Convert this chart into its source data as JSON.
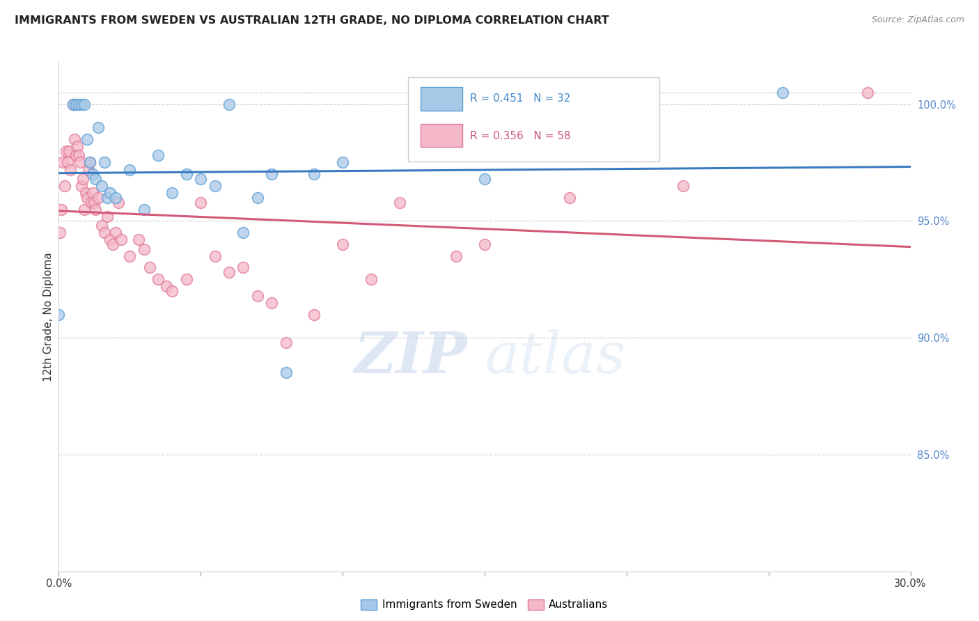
{
  "title": "IMMIGRANTS FROM SWEDEN VS AUSTRALIAN 12TH GRADE, NO DIPLOMA CORRELATION CHART",
  "source": "Source: ZipAtlas.com",
  "ylabel": "12th Grade, No Diploma",
  "xmin": 0.0,
  "xmax": 30.0,
  "ymin": 80.0,
  "ymax": 101.8,
  "yticks": [
    85.0,
    90.0,
    95.0,
    100.0
  ],
  "ytick_labels": [
    "85.0%",
    "90.0%",
    "95.0%",
    "100.0%"
  ],
  "legend_r1": "R = 0.451",
  "legend_n1": "N = 32",
  "legend_r2": "R = 0.356",
  "legend_n2": "N = 58",
  "legend_label1": "Immigrants from Sweden",
  "legend_label2": "Australians",
  "blue_fill": "#a8c8e8",
  "blue_edge": "#5a9fd4",
  "blue_line": "#3a7abf",
  "pink_fill": "#f4b8c8",
  "pink_edge": "#e07898",
  "pink_line": "#d45878",
  "watermark_zip": "ZIP",
  "watermark_atlas": "atlas",
  "blue_points_x": [
    0.0,
    0.5,
    0.6,
    0.7,
    0.8,
    0.9,
    1.0,
    1.1,
    1.2,
    1.3,
    1.4,
    1.5,
    1.6,
    1.7,
    1.8,
    2.0,
    2.5,
    3.0,
    3.5,
    4.0,
    4.5,
    5.0,
    5.5,
    6.0,
    6.5,
    7.0,
    7.5,
    8.0,
    9.0,
    10.0,
    15.0,
    25.5
  ],
  "blue_points_y": [
    91.0,
    100.0,
    100.0,
    100.0,
    100.0,
    100.0,
    98.5,
    97.5,
    97.0,
    96.8,
    99.0,
    96.5,
    97.5,
    96.0,
    96.2,
    96.0,
    97.2,
    95.5,
    97.8,
    96.2,
    97.0,
    96.8,
    96.5,
    100.0,
    94.5,
    96.0,
    97.0,
    88.5,
    97.0,
    97.5,
    96.8,
    100.5
  ],
  "pink_points_x": [
    0.05,
    0.1,
    0.15,
    0.2,
    0.25,
    0.3,
    0.35,
    0.4,
    0.5,
    0.55,
    0.6,
    0.65,
    0.7,
    0.75,
    0.8,
    0.85,
    0.9,
    0.95,
    1.0,
    1.05,
    1.1,
    1.15,
    1.2,
    1.25,
    1.3,
    1.4,
    1.5,
    1.6,
    1.7,
    1.8,
    1.9,
    2.0,
    2.1,
    2.2,
    2.5,
    2.8,
    3.0,
    3.2,
    3.5,
    3.8,
    4.0,
    4.5,
    5.0,
    5.5,
    6.0,
    6.5,
    7.0,
    7.5,
    8.0,
    9.0,
    10.0,
    11.0,
    12.0,
    14.0,
    15.0,
    18.0,
    22.0,
    28.5
  ],
  "pink_points_y": [
    94.5,
    95.5,
    97.5,
    96.5,
    98.0,
    97.5,
    98.0,
    97.2,
    100.0,
    98.5,
    97.8,
    98.2,
    97.8,
    97.5,
    96.5,
    96.8,
    95.5,
    96.2,
    96.0,
    97.2,
    97.5,
    95.8,
    96.2,
    95.8,
    95.5,
    96.0,
    94.8,
    94.5,
    95.2,
    94.2,
    94.0,
    94.5,
    95.8,
    94.2,
    93.5,
    94.2,
    93.8,
    93.0,
    92.5,
    92.2,
    92.0,
    92.5,
    95.8,
    93.5,
    92.8,
    93.0,
    91.8,
    91.5,
    89.8,
    91.0,
    94.0,
    92.5,
    95.8,
    93.5,
    94.0,
    96.0,
    96.5,
    100.5
  ]
}
